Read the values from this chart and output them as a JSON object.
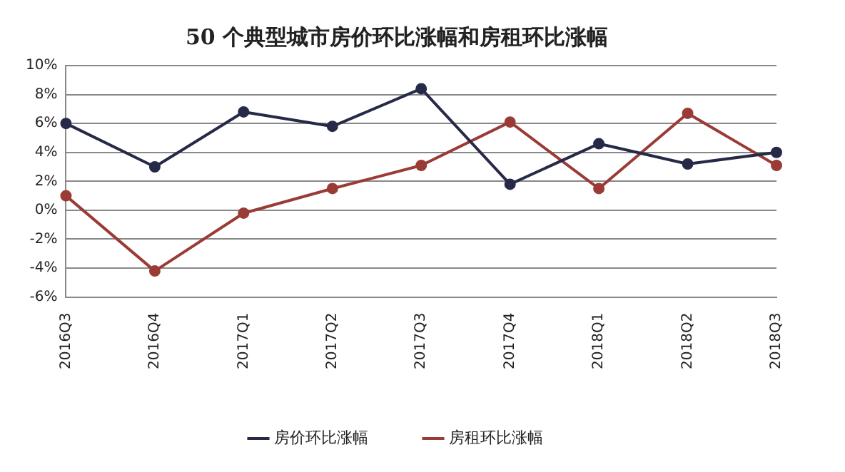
{
  "chart_data": {
    "type": "line",
    "title": "50 个典型城市房价环比涨幅和房租环比涨幅",
    "categories": [
      "2016Q3",
      "2016Q4",
      "2017Q1",
      "2017Q2",
      "2017Q3",
      "2017Q4",
      "2018Q1",
      "2018Q2",
      "2018Q3"
    ],
    "series": [
      {
        "name": "房价环比涨幅",
        "color": "#262a48",
        "values": [
          6.0,
          3.0,
          6.8,
          5.8,
          8.4,
          1.8,
          4.6,
          3.2,
          4.0
        ]
      },
      {
        "name": "房租环比涨幅",
        "color": "#9a3b36",
        "values": [
          1.0,
          -4.2,
          -0.2,
          1.5,
          3.1,
          6.1,
          1.5,
          6.7,
          3.1
        ]
      }
    ],
    "ylim": [
      -6,
      10
    ],
    "yticks": [
      {
        "value": -6,
        "label": "-6%"
      },
      {
        "value": -4,
        "label": "-4%"
      },
      {
        "value": -2,
        "label": "-2%"
      },
      {
        "value": 0,
        "label": "0%"
      },
      {
        "value": 2,
        "label": "2%"
      },
      {
        "value": 4,
        "label": "4%"
      },
      {
        "value": 6,
        "label": "6%"
      },
      {
        "value": 8,
        "label": "8%"
      },
      {
        "value": 10,
        "label": "10%"
      }
    ],
    "grid": "y",
    "legend": "bottom",
    "marker": "circle",
    "line_style": "solid"
  }
}
